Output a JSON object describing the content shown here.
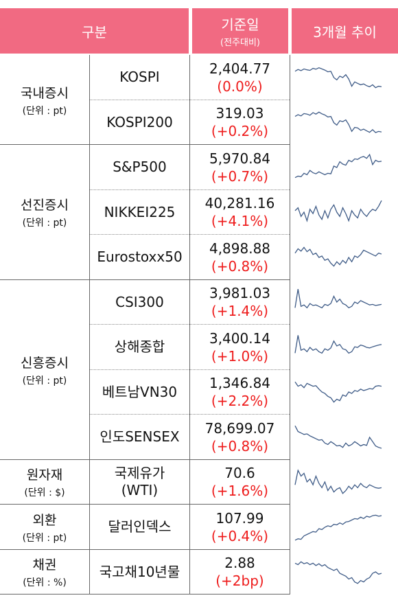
{
  "header": {
    "col1": "구분",
    "col2": "기준일",
    "col2_sub": "(전주대비)",
    "col3": "3개월 추이"
  },
  "groups": [
    {
      "name": "국내증시",
      "unit": "(단위 : pt)"
    },
    {
      "name": "선진증시",
      "unit": "(단위 : pt)"
    },
    {
      "name": "신흥증시",
      "unit": "(단위 : pt)"
    },
    {
      "name": "원자재",
      "unit": "(단위 : $)"
    },
    {
      "name": "외환",
      "unit": "(단위 : pt)"
    },
    {
      "name": "채권",
      "unit": "(단위 : %)"
    }
  ],
  "rows": [
    {
      "name": "KOSPI",
      "value": "2,404.77",
      "change": "(0.0%)",
      "trend": [
        0.72,
        0.78,
        0.74,
        0.8,
        0.77,
        0.75,
        0.82,
        0.79,
        0.84,
        0.8,
        0.76,
        0.7,
        0.72,
        0.5,
        0.42,
        0.55,
        0.5,
        0.6,
        0.45,
        0.2,
        0.35,
        0.3,
        0.25,
        0.28,
        0.22,
        0.18,
        0.25,
        0.15,
        0.2,
        0.18
      ]
    },
    {
      "name": "KOSPI200",
      "value": "319.03",
      "change": "(+0.2%)",
      "trend": [
        0.7,
        0.76,
        0.72,
        0.8,
        0.78,
        0.74,
        0.83,
        0.78,
        0.85,
        0.79,
        0.75,
        0.68,
        0.7,
        0.48,
        0.4,
        0.55,
        0.52,
        0.58,
        0.42,
        0.18,
        0.32,
        0.3,
        0.22,
        0.26,
        0.2,
        0.15,
        0.24,
        0.14,
        0.18,
        0.16
      ]
    },
    {
      "name": "S&P500",
      "value": "5,970.84",
      "change": "(+0.7%)",
      "trend": [
        0.15,
        0.2,
        0.18,
        0.3,
        0.25,
        0.4,
        0.32,
        0.28,
        0.35,
        0.3,
        0.25,
        0.3,
        0.28,
        0.55,
        0.5,
        0.7,
        0.62,
        0.58,
        0.75,
        0.7,
        0.8,
        0.78,
        0.85,
        0.88,
        0.82,
        0.95,
        0.6,
        0.75,
        0.7,
        0.72
      ]
    },
    {
      "name": "NIKKEI225",
      "value": "40,281.16",
      "change": "(+4.1%)",
      "trend": [
        0.55,
        0.65,
        0.35,
        0.5,
        0.2,
        0.6,
        0.45,
        0.7,
        0.4,
        0.25,
        0.55,
        0.3,
        0.6,
        0.75,
        0.5,
        0.35,
        0.65,
        0.45,
        0.2,
        0.55,
        0.4,
        0.3,
        0.6,
        0.45,
        0.35,
        0.5,
        0.6,
        0.55,
        0.7,
        0.9
      ]
    },
    {
      "name": "Eurostoxx50",
      "value": "4,898.88",
      "change": "(+0.8%)",
      "trend": [
        0.65,
        0.8,
        0.72,
        0.85,
        0.7,
        0.78,
        0.6,
        0.65,
        0.5,
        0.55,
        0.4,
        0.45,
        0.3,
        0.2,
        0.35,
        0.25,
        0.4,
        0.3,
        0.5,
        0.35,
        0.55,
        0.5,
        0.6,
        0.75,
        0.7,
        0.65,
        0.6,
        0.55,
        0.65,
        0.62
      ]
    },
    {
      "name": "CSI300",
      "value": "3,981.03",
      "change": "(+1.4%)",
      "trend": [
        0.3,
        0.95,
        0.35,
        0.4,
        0.3,
        0.45,
        0.38,
        0.4,
        0.35,
        0.3,
        0.42,
        0.38,
        0.45,
        0.7,
        0.5,
        0.6,
        0.45,
        0.4,
        0.3,
        0.35,
        0.5,
        0.45,
        0.55,
        0.5,
        0.45,
        0.4,
        0.42,
        0.38,
        0.4,
        0.42
      ]
    },
    {
      "name": "상해종합",
      "value": "3,400.14",
      "change": "(+1.0%)",
      "trend": [
        0.3,
        0.92,
        0.4,
        0.45,
        0.35,
        0.5,
        0.4,
        0.45,
        0.35,
        0.3,
        0.45,
        0.4,
        0.48,
        0.72,
        0.55,
        0.6,
        0.45,
        0.42,
        0.3,
        0.35,
        0.52,
        0.5,
        0.58,
        0.55,
        0.5,
        0.48,
        0.52,
        0.55,
        0.58,
        0.6
      ]
    },
    {
      "name": "베트남VN30",
      "value": "1,346.84",
      "change": "(+2.2%)",
      "trend": [
        0.85,
        0.7,
        0.75,
        0.65,
        0.8,
        0.75,
        0.7,
        0.72,
        0.6,
        0.5,
        0.45,
        0.35,
        0.3,
        0.15,
        0.25,
        0.2,
        0.4,
        0.35,
        0.5,
        0.45,
        0.55,
        0.52,
        0.6,
        0.55,
        0.58,
        0.62,
        0.6,
        0.7,
        0.72,
        0.7
      ]
    },
    {
      "name": "인도SENSEX",
      "value": "78,699.07",
      "change": "(+0.8%)",
      "trend": [
        0.9,
        0.7,
        0.65,
        0.6,
        0.62,
        0.55,
        0.5,
        0.45,
        0.4,
        0.42,
        0.3,
        0.25,
        0.35,
        0.28,
        0.2,
        0.22,
        0.15,
        0.3,
        0.2,
        0.25,
        0.35,
        0.28,
        0.2,
        0.25,
        0.22,
        0.5,
        0.35,
        0.2,
        0.15,
        0.12
      ]
    },
    {
      "name": "국제유가\n(WTI)",
      "value": "70.6",
      "change": "(+1.6%)",
      "trend": [
        0.4,
        0.9,
        0.7,
        0.8,
        0.5,
        0.6,
        0.4,
        0.7,
        0.45,
        0.3,
        0.5,
        0.2,
        0.35,
        0.15,
        0.25,
        0.3,
        0.1,
        0.2,
        0.35,
        0.25,
        0.4,
        0.3,
        0.45,
        0.35,
        0.3,
        0.4,
        0.35,
        0.3,
        0.28,
        0.3
      ]
    },
    {
      "name": "달러인덱스",
      "value": "107.99",
      "change": "(+0.4%)",
      "trend": [
        0.05,
        0.1,
        0.08,
        0.2,
        0.25,
        0.3,
        0.35,
        0.33,
        0.45,
        0.42,
        0.5,
        0.55,
        0.52,
        0.6,
        0.58,
        0.65,
        0.6,
        0.68,
        0.7,
        0.75,
        0.8,
        0.78,
        0.85,
        0.8,
        0.88,
        0.85,
        0.9,
        0.92,
        0.88,
        0.9
      ]
    },
    {
      "name": "국고채10년물",
      "value": "2.88",
      "change": "(+2bp)",
      "trend": [
        0.8,
        0.75,
        0.85,
        0.78,
        0.82,
        0.75,
        0.8,
        0.72,
        0.78,
        0.7,
        0.75,
        0.65,
        0.6,
        0.55,
        0.6,
        0.45,
        0.4,
        0.35,
        0.25,
        0.3,
        0.15,
        0.1,
        0.2,
        0.15,
        0.25,
        0.3,
        0.45,
        0.5,
        0.42,
        0.45
      ]
    }
  ]
}
